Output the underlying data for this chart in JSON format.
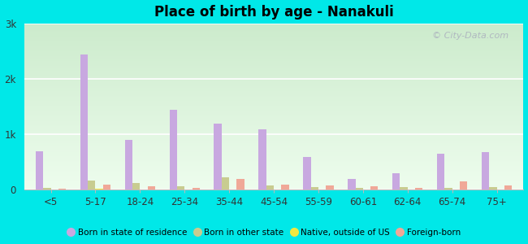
{
  "title": "Place of birth by age - Nanakuli",
  "categories": [
    "<5",
    "5-17",
    "18-24",
    "25-34",
    "35-44",
    "45-54",
    "55-59",
    "60-61",
    "62-64",
    "65-74",
    "75+"
  ],
  "series": {
    "born_in_state": [
      700,
      2450,
      900,
      1450,
      1200,
      1100,
      600,
      200,
      300,
      650,
      680
    ],
    "born_other_state": [
      30,
      170,
      130,
      60,
      230,
      80,
      50,
      30,
      50,
      40,
      50
    ],
    "native_outside_us": [
      10,
      20,
      10,
      10,
      10,
      10,
      10,
      10,
      10,
      10,
      10
    ],
    "foreign_born": [
      20,
      100,
      60,
      40,
      200,
      100,
      80,
      60,
      40,
      150,
      80
    ]
  },
  "colors": {
    "born_in_state": "#c8a8e0",
    "born_other_state": "#c8cc90",
    "native_outside_us": "#f0e840",
    "foreign_born": "#f0a898"
  },
  "legend_labels": [
    "Born in state of residence",
    "Born in other state",
    "Native, outside of US",
    "Foreign-born"
  ],
  "ylim": [
    0,
    3000
  ],
  "yticks": [
    0,
    1000,
    2000,
    3000
  ],
  "ytick_labels": [
    "0",
    "1k",
    "2k",
    "3k"
  ],
  "bar_width": 0.17,
  "watermark": "© City-Data.com",
  "cyan_bg": "#00e8e8",
  "grid_color": "#ffffff",
  "bottom_spine_color": "#bbbbbb"
}
